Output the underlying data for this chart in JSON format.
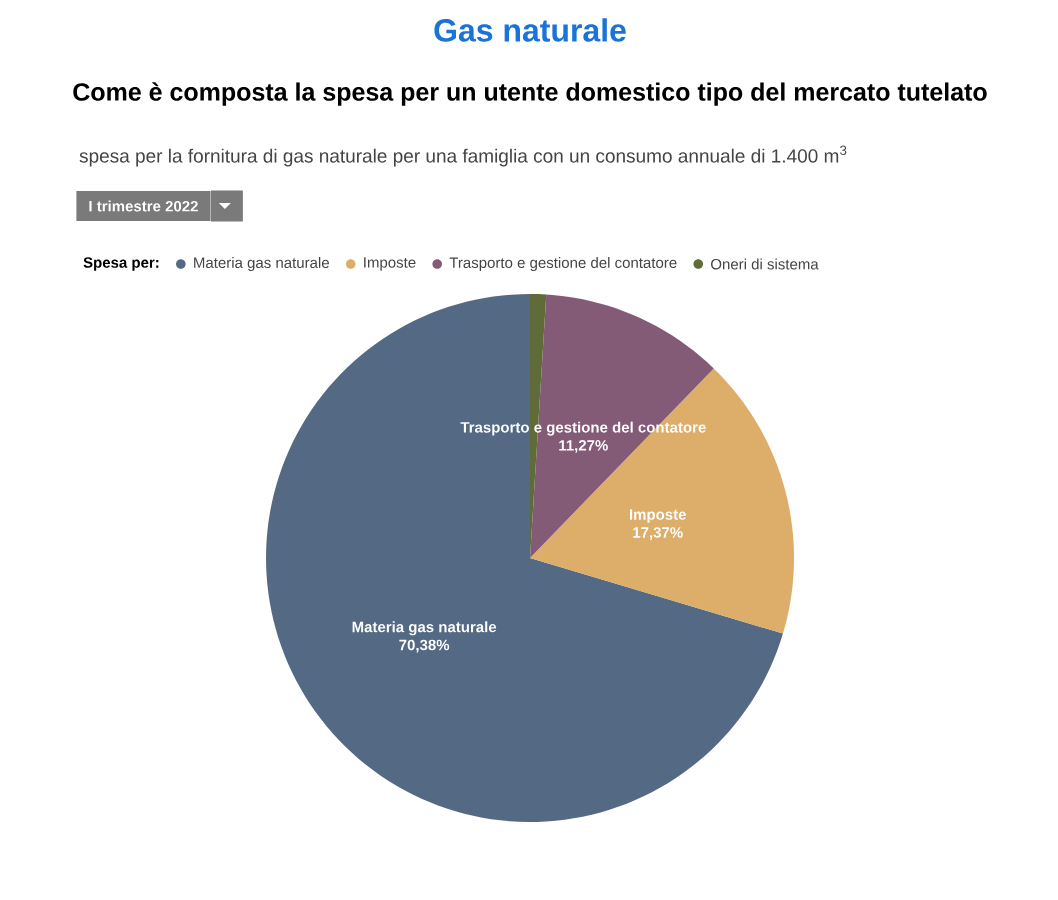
{
  "chart_data": {
    "type": "pie",
    "title": "Gas naturale",
    "subtitle": "Come è composta la spesa per un utente domestico tipo del mercato tutelato",
    "annotations": [
      "spesa per la fornitura di gas naturale per una famiglia con un consumo annuale di 1.400 m$^{3}$",
      "I trimestre 2022"
    ],
    "legend_title": "Spesa per:",
    "legend": "top left",
    "categories": [
      "Materia gas naturale",
      "Imposte",
      "Trasporto e gestione del contatore",
      "Oneri di sistema"
    ],
    "values": [
      70.38,
      17.37,
      11.27,
      0.98
    ],
    "value_labels": [
      "70,38%",
      "17,37%",
      "11,27%",
      null
    ],
    "colors": [
      "#546a84",
      "#dcae69",
      "#845b77",
      "#606b3a"
    ]
  }
}
